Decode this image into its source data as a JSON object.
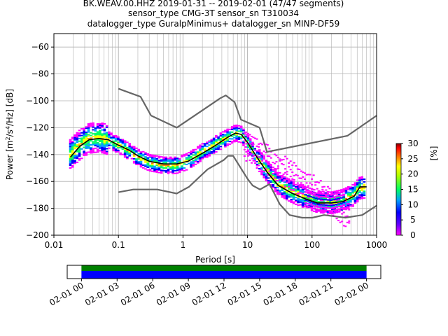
{
  "title": {
    "line1": "BK.WEAV.00.HHZ   2019-01-31 -- 2019-02-01  (47/47 segments)",
    "line2": "sensor_type CMG-3T sensor_sn T310034",
    "line3": "datalogger_type GuralpMinimus+ datalogger_sn MINP-DF59"
  },
  "chart_data": [
    {
      "type": "heatmap",
      "xlabel": "Period [s]",
      "ylabel_parts": {
        "pre": "Power [m",
        "sup1": "2",
        "mid": "/s",
        "sup2": "4",
        "post": "/Hz] [dB]"
      },
      "xscale": "log",
      "xlim": [
        0.01,
        1000
      ],
      "ylim": [
        -200,
        -50
      ],
      "xtick_labels": [
        "0.01",
        "0.1",
        "1",
        "10",
        "100",
        "1000"
      ],
      "xtick_values": [
        0.01,
        0.1,
        1,
        10,
        100,
        1000
      ],
      "ytick_values": [
        -200,
        -180,
        -160,
        -140,
        -120,
        -100,
        -80,
        -60
      ],
      "grid": true,
      "colorbar": {
        "label": "[%]",
        "ticks": [
          0,
          5,
          10,
          15,
          20,
          25,
          30
        ],
        "range": [
          0,
          30
        ],
        "colors": [
          "#ff00ff",
          "#0000ff",
          "#00a0ff",
          "#00ff60",
          "#ffff00",
          "#ff8000",
          "#ff0000",
          "#800000"
        ]
      },
      "psd_band": [
        {
          "p": 0.018,
          "v": -140
        },
        {
          "p": 0.025,
          "v": -133
        },
        {
          "p": 0.035,
          "v": -128
        },
        {
          "p": 0.05,
          "v": -127
        },
        {
          "p": 0.07,
          "v": -129
        },
        {
          "p": 0.1,
          "v": -133
        },
        {
          "p": 0.15,
          "v": -138
        },
        {
          "p": 0.2,
          "v": -142
        },
        {
          "p": 0.3,
          "v": -146
        },
        {
          "p": 0.5,
          "v": -148
        },
        {
          "p": 0.8,
          "v": -148
        },
        {
          "p": 1.2,
          "v": -145
        },
        {
          "p": 2,
          "v": -138
        },
        {
          "p": 3,
          "v": -133
        },
        {
          "p": 5,
          "v": -127
        },
        {
          "p": 6.5,
          "v": -124
        },
        {
          "p": 8,
          "v": -125
        },
        {
          "p": 10,
          "v": -131
        },
        {
          "p": 14,
          "v": -142
        },
        {
          "p": 20,
          "v": -152
        },
        {
          "p": 30,
          "v": -162
        },
        {
          "p": 50,
          "v": -168
        },
        {
          "p": 80,
          "v": -172
        },
        {
          "p": 120,
          "v": -175
        },
        {
          "p": 200,
          "v": -176
        },
        {
          "p": 300,
          "v": -174
        },
        {
          "p": 450,
          "v": -170
        },
        {
          "p": 550,
          "v": -165
        },
        {
          "p": 700,
          "v": -164
        }
      ],
      "series": [
        {
          "name": "",
          "color": "#000000",
          "points": [
            {
              "p": 0.018,
              "v": -142
            },
            {
              "p": 0.025,
              "v": -134
            },
            {
              "p": 0.035,
              "v": -129
            },
            {
              "p": 0.05,
              "v": -128
            },
            {
              "p": 0.07,
              "v": -129
            },
            {
              "p": 0.1,
              "v": -133
            },
            {
              "p": 0.15,
              "v": -137
            },
            {
              "p": 0.2,
              "v": -141
            },
            {
              "p": 0.3,
              "v": -145
            },
            {
              "p": 0.5,
              "v": -147
            },
            {
              "p": 0.8,
              "v": -147
            },
            {
              "p": 1.2,
              "v": -145
            },
            {
              "p": 2,
              "v": -139
            },
            {
              "p": 3,
              "v": -134
            },
            {
              "p": 5,
              "v": -127
            },
            {
              "p": 6.5,
              "v": -124
            },
            {
              "p": 8,
              "v": -125
            },
            {
              "p": 10,
              "v": -131
            },
            {
              "p": 14,
              "v": -142
            },
            {
              "p": 20,
              "v": -153
            },
            {
              "p": 30,
              "v": -163
            },
            {
              "p": 50,
              "v": -169
            },
            {
              "p": 80,
              "v": -173
            },
            {
              "p": 120,
              "v": -176
            },
            {
              "p": 200,
              "v": -176
            },
            {
              "p": 300,
              "v": -175
            },
            {
              "p": 450,
              "v": -171
            },
            {
              "p": 550,
              "v": -164
            },
            {
              "p": 700,
              "v": -164
            }
          ]
        },
        {
          "name": "",
          "color": "#666666",
          "points": [
            {
              "p": 0.1,
              "v": -91
            },
            {
              "p": 0.22,
              "v": -97
            },
            {
              "p": 0.32,
              "v": -111
            },
            {
              "p": 0.8,
              "v": -120
            },
            {
              "p": 3.8,
              "v": -98
            },
            {
              "p": 4.6,
              "v": -96
            },
            {
              "p": 6.3,
              "v": -101
            },
            {
              "p": 7.9,
              "v": -114
            },
            {
              "p": 15.4,
              "v": -120
            },
            {
              "p": 20,
              "v": -138
            },
            {
              "p": 354.8,
              "v": -126
            },
            {
              "p": 1000,
              "v": -111
            }
          ]
        },
        {
          "name": "",
          "color": "#666666",
          "points": [
            {
              "p": 0.1,
              "v": -168
            },
            {
              "p": 0.17,
              "v": -166
            },
            {
              "p": 0.4,
              "v": -166
            },
            {
              "p": 0.8,
              "v": -169
            },
            {
              "p": 1.24,
              "v": -164
            },
            {
              "p": 2.4,
              "v": -151
            },
            {
              "p": 4.3,
              "v": -144
            },
            {
              "p": 5,
              "v": -141
            },
            {
              "p": 6,
              "v": -141
            },
            {
              "p": 10,
              "v": -158
            },
            {
              "p": 12,
              "v": -163
            },
            {
              "p": 15.6,
              "v": -166
            },
            {
              "p": 21.9,
              "v": -162
            },
            {
              "p": 31.6,
              "v": -177
            },
            {
              "p": 45,
              "v": -185
            },
            {
              "p": 70,
              "v": -187
            },
            {
              "p": 101,
              "v": -187
            },
            {
              "p": 154,
              "v": -185
            },
            {
              "p": 328,
              "v": -187
            },
            {
              "p": 600,
              "v": -185
            },
            {
              "p": 1000,
              "v": -178
            }
          ]
        }
      ]
    },
    {
      "type": "timeline",
      "xtick_labels": [
        "02-01 00",
        "02-01 03",
        "02-01 06",
        "02-01 09",
        "02-01 12",
        "02-01 15",
        "02-01 18",
        "02-01 21",
        "02-02 00"
      ],
      "xtick_hours": [
        0,
        3,
        6,
        9,
        12,
        15,
        18,
        21,
        24
      ],
      "xlim_hours": [
        -1.2,
        25.2
      ],
      "bars": [
        {
          "start_hour": 0,
          "end_hour": 24,
          "color": "#008000"
        },
        {
          "start_hour": 0,
          "end_hour": 24,
          "color": "#0000ff"
        }
      ]
    }
  ]
}
